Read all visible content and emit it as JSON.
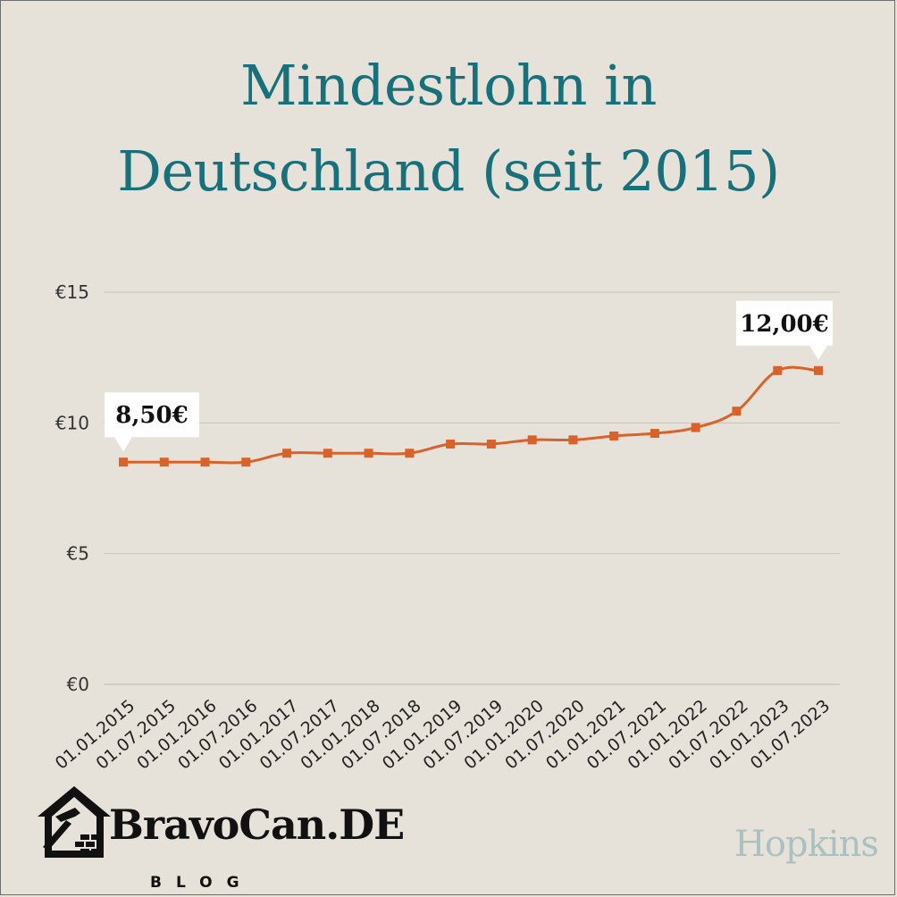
{
  "title_lines": [
    "Mindestlohn in",
    "Deutschland (seit 2015)"
  ],
  "chart_data": {
    "type": "line",
    "title": "Mindestlohn in Deutschland (seit 2015)",
    "xlabel": "",
    "ylabel": "",
    "ylim": [
      0,
      15
    ],
    "yticks": [
      0,
      5,
      10,
      15
    ],
    "ytick_labels": [
      "€0",
      "€5",
      "€10",
      "€15"
    ],
    "categories": [
      "01.01.2015",
      "01.07.2015",
      "01.01.2016",
      "01.07.2016",
      "01.01.2017",
      "01.07.2017",
      "01.01.2018",
      "01.07.2018",
      "01.01.2019",
      "01.07.2019",
      "01.01.2020",
      "01.07.2020",
      "01.01.2021",
      "01.07.2021",
      "01.01.2022",
      "01.07.2022",
      "01.01.2023",
      "01.07.2023"
    ],
    "values": [
      8.5,
      8.5,
      8.5,
      8.5,
      8.84,
      8.84,
      8.84,
      8.84,
      9.19,
      9.19,
      9.35,
      9.35,
      9.5,
      9.6,
      9.82,
      10.45,
      12.0,
      12.0
    ],
    "grid": true,
    "line_color": "#d9622b",
    "annotations": [
      {
        "index": 0,
        "text": "8,50€"
      },
      {
        "index": 17,
        "text": "12,00€"
      }
    ]
  },
  "branding": {
    "left_name": "BravoCan.DE",
    "left_sub": "BLOG",
    "right_name": "Hopkins"
  },
  "colors": {
    "background": "#e7e2d9",
    "title": "#17707a",
    "line": "#d9622b",
    "grid": "#c9c4bb"
  }
}
